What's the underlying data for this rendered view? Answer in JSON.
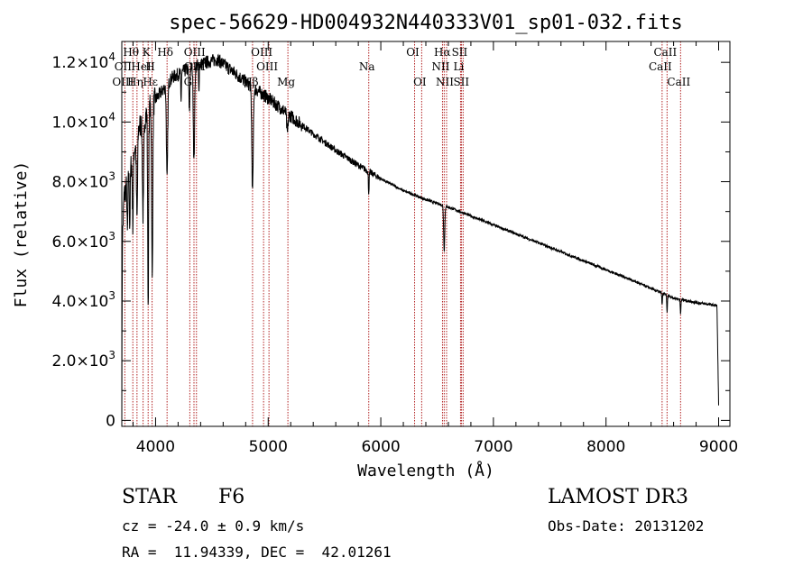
{
  "chart_data": {
    "type": "line",
    "title": "spec-56629-HD004932N440333V01_sp01-032.fits",
    "xlabel": "Wavelength (Å)",
    "ylabel": "Flux (relative)",
    "xlim": [
      3700,
      9100
    ],
    "ylim": [
      -200,
      12700
    ],
    "x_ticks": [
      4000,
      5000,
      6000,
      7000,
      8000,
      9000
    ],
    "x_tick_labels": [
      "4000",
      "5000",
      "6000",
      "7000",
      "8000",
      "9000"
    ],
    "y_ticks": [
      0,
      2000,
      4000,
      6000,
      8000,
      10000,
      12000
    ],
    "y_tick_labels": [
      {
        "m": "0",
        "e": ""
      },
      {
        "m": "2.0×10",
        "e": "3"
      },
      {
        "m": "4.0×10",
        "e": "3"
      },
      {
        "m": "6.0×10",
        "e": "3"
      },
      {
        "m": "8.0×10",
        "e": "3"
      },
      {
        "m": "1.0×10",
        "e": "4"
      },
      {
        "m": "1.2×10",
        "e": "4"
      }
    ],
    "continuum": [
      [
        3700,
        0
      ],
      [
        3705,
        6000
      ],
      [
        3720,
        7500
      ],
      [
        3780,
        8500
      ],
      [
        3850,
        9800
      ],
      [
        3950,
        10500
      ],
      [
        4050,
        11000
      ],
      [
        4150,
        11500
      ],
      [
        4300,
        11800
      ],
      [
        4450,
        12000
      ],
      [
        4550,
        12100
      ],
      [
        4650,
        11800
      ],
      [
        4750,
        11500
      ],
      [
        4850,
        11200
      ],
      [
        5000,
        10800
      ],
      [
        5200,
        10200
      ],
      [
        5400,
        9600
      ],
      [
        5600,
        9050
      ],
      [
        5800,
        8550
      ],
      [
        6000,
        8100
      ],
      [
        6200,
        7700
      ],
      [
        6400,
        7400
      ],
      [
        6600,
        7150
      ],
      [
        6800,
        6850
      ],
      [
        7000,
        6550
      ],
      [
        7200,
        6250
      ],
      [
        7400,
        5950
      ],
      [
        7600,
        5650
      ],
      [
        7800,
        5350
      ],
      [
        8000,
        5050
      ],
      [
        8200,
        4750
      ],
      [
        8400,
        4420
      ],
      [
        8600,
        4100
      ],
      [
        8800,
        3950
      ],
      [
        8985,
        3850
      ],
      [
        9000,
        500
      ]
    ],
    "absorption_features": [
      {
        "wl": 3750,
        "depth": 1800,
        "width": 5
      },
      {
        "wl": 3771,
        "depth": 1800,
        "width": 5
      },
      {
        "wl": 3798,
        "depth": 2200,
        "width": 6
      },
      {
        "wl": 3835,
        "depth": 2800,
        "width": 7
      },
      {
        "wl": 3889,
        "depth": 3200,
        "width": 8
      },
      {
        "wl": 3934,
        "depth": 6500,
        "width": 6
      },
      {
        "wl": 3970,
        "depth": 6000,
        "width": 7
      },
      {
        "wl": 4102,
        "depth": 3200,
        "width": 8
      },
      {
        "wl": 4226,
        "depth": 1000,
        "width": 4
      },
      {
        "wl": 4300,
        "depth": 1500,
        "width": 6
      },
      {
        "wl": 4341,
        "depth": 3200,
        "width": 8
      },
      {
        "wl": 4384,
        "depth": 900,
        "width": 4
      },
      {
        "wl": 4861,
        "depth": 3500,
        "width": 9
      },
      {
        "wl": 5170,
        "depth": 700,
        "width": 8
      },
      {
        "wl": 5893,
        "depth": 700,
        "width": 5
      },
      {
        "wl": 6563,
        "depth": 1500,
        "width": 7
      },
      {
        "wl": 8498,
        "depth": 400,
        "width": 4
      },
      {
        "wl": 8542,
        "depth": 600,
        "width": 4
      },
      {
        "wl": 8662,
        "depth": 500,
        "width": 4
      }
    ],
    "spectral_lines": [
      {
        "label": "Hθ",
        "wl": 3798,
        "row": 0
      },
      {
        "label": "K",
        "wl": 3934,
        "row": 0
      },
      {
        "label": "Hδ",
        "wl": 4102,
        "row": 0
      },
      {
        "label": "OII",
        "wl": 3727,
        "row": 1
      },
      {
        "label": "HeI",
        "wl": 3889,
        "row": 1
      },
      {
        "label": "H",
        "wl": 3969,
        "row": 1
      },
      {
        "label": "OIII",
        "wl": 3727,
        "row": 2
      },
      {
        "label": "Hη",
        "wl": 3835,
        "row": 2
      },
      {
        "label": "Hε",
        "wl": 3970,
        "row": 2
      },
      {
        "label": "OIII",
        "wl": 4363,
        "row": 0
      },
      {
        "label": "OIII",
        "wl": 4363,
        "row": 1
      },
      {
        "label": "G",
        "wl": 4304,
        "row": 2
      },
      {
        "label": "Hβ",
        "wl": 4861,
        "row": 2
      },
      {
        "label": "OIII",
        "wl": 4959,
        "row": 0
      },
      {
        "label": "OIII",
        "wl": 5007,
        "row": 1
      },
      {
        "label": "Mg",
        "wl": 5175,
        "row": 2
      },
      {
        "label": "Na",
        "wl": 5893,
        "row": 1
      },
      {
        "label": "OI",
        "wl": 6300,
        "row": 0
      },
      {
        "label": "OI",
        "wl": 6363,
        "row": 2
      },
      {
        "label": "Hα",
        "wl": 6563,
        "row": 0
      },
      {
        "label": "SII",
        "wl": 6716,
        "row": 0
      },
      {
        "label": "NII",
        "wl": 6548,
        "row": 1
      },
      {
        "label": "Li",
        "wl": 6708,
        "row": 1
      },
      {
        "label": "NII",
        "wl": 6584,
        "row": 2
      },
      {
        "label": "SII",
        "wl": 6731,
        "row": 2
      },
      {
        "label": "CaII",
        "wl": 8542,
        "row": 0
      },
      {
        "label": "CaII",
        "wl": 8498,
        "row": 1
      },
      {
        "label": "CaII",
        "wl": 8662,
        "row": 2
      }
    ],
    "marker_wavelengths": [
      3727,
      3798,
      3835,
      3889,
      3934,
      3969,
      4102,
      4304,
      4341,
      4363,
      4861,
      4959,
      5007,
      5175,
      5893,
      6300,
      6363,
      6548,
      6563,
      6584,
      6708,
      6716,
      6731,
      8498,
      8542,
      8662
    ],
    "colors": {
      "spectrum": "#000000",
      "markers": "#b22222",
      "axes": "#000000"
    }
  },
  "info": {
    "object_class": "STAR",
    "subclass": "F6",
    "survey": "LAMOST DR3",
    "cz": "cz = -24.0 ± 0.9 km/s",
    "obs_date": "Obs-Date: 20131202",
    "coords": "RA =  11.94339, DEC =  42.01261"
  }
}
